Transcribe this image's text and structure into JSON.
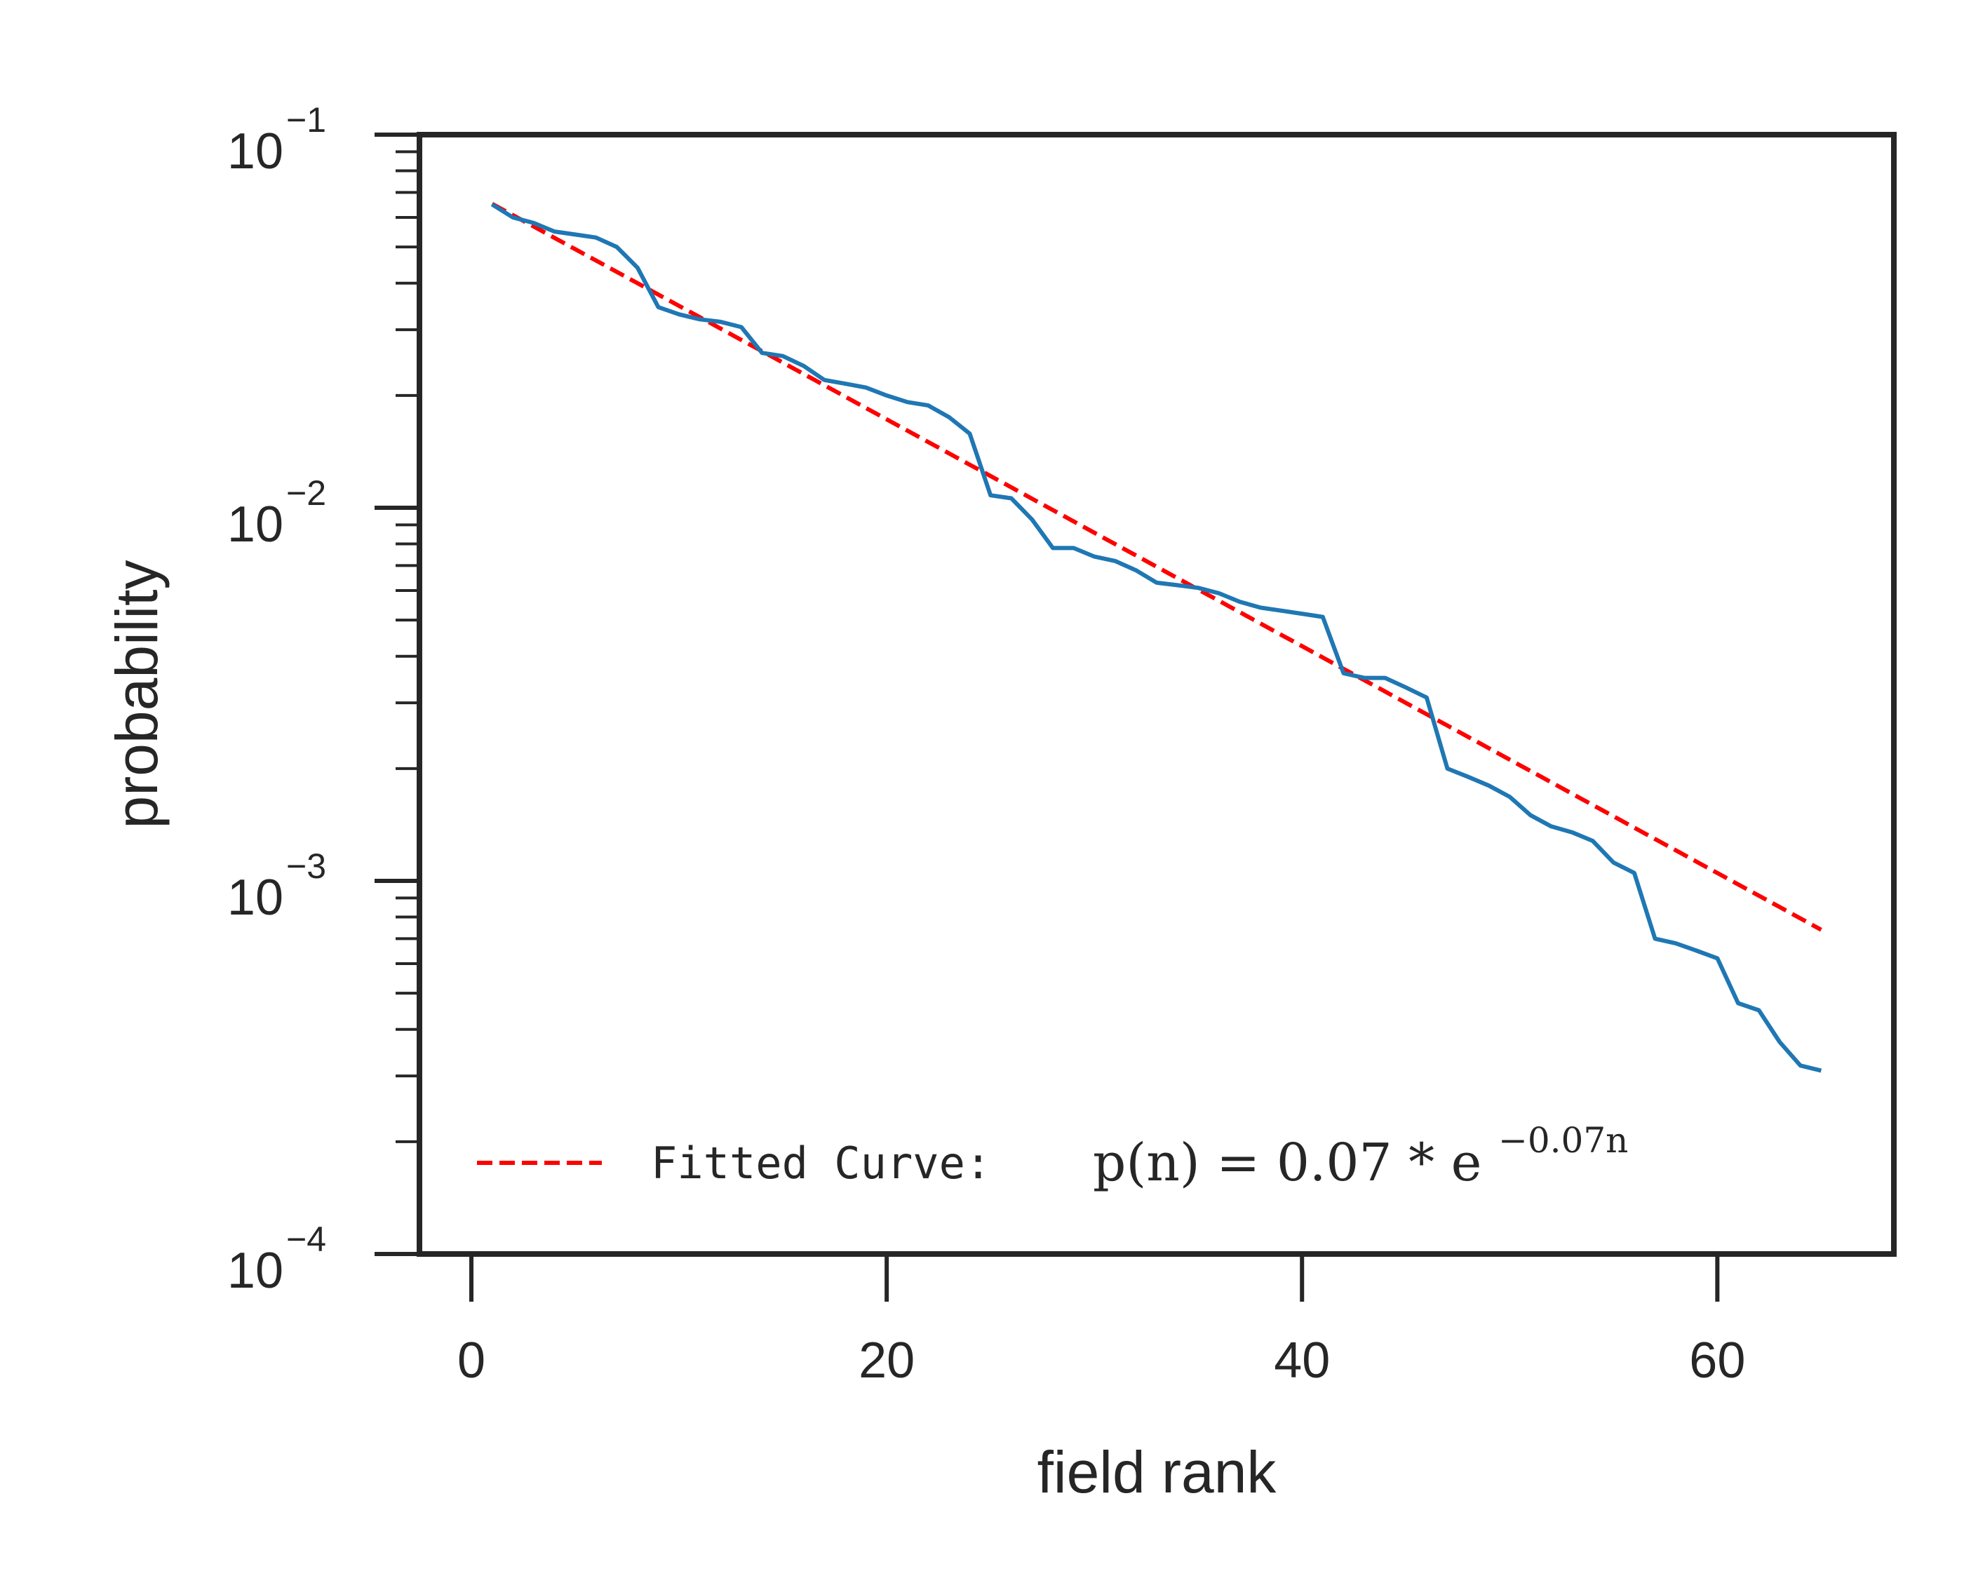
{
  "chart_data": {
    "type": "line",
    "xlabel": "field rank",
    "ylabel": "probability",
    "xlim": [
      -2.5,
      68.5
    ],
    "ylim": [
      0.0001,
      0.1
    ],
    "yscale": "log",
    "grid": false,
    "legend_position": "lower-left",
    "x_ticks": [
      0,
      20,
      40,
      60
    ],
    "y_ticks": [
      {
        "value": 0.0001,
        "base": "10",
        "exp": "−4"
      },
      {
        "value": 0.001,
        "base": "10",
        "exp": "−3"
      },
      {
        "value": 0.01,
        "base": "10",
        "exp": "−2"
      },
      {
        "value": 0.1,
        "base": "10",
        "exp": "−1"
      }
    ],
    "series": [
      {
        "color": "#1f77b4",
        "style": "solid",
        "x": [
          1,
          2,
          3,
          4,
          5,
          6,
          7,
          8,
          9,
          10,
          11,
          12,
          13,
          14,
          15,
          16,
          17,
          18,
          19,
          20,
          21,
          22,
          23,
          24,
          25,
          26,
          27,
          28,
          29,
          30,
          31,
          32,
          33,
          34,
          35,
          36,
          37,
          38,
          39,
          40,
          41,
          42,
          43,
          44,
          45,
          46,
          47,
          48,
          49,
          50,
          51,
          52,
          53,
          54,
          55,
          56,
          57,
          58,
          59,
          60,
          61,
          62,
          63,
          64,
          65
        ],
        "y": [
          0.065,
          0.06,
          0.058,
          0.055,
          0.054,
          0.053,
          0.05,
          0.044,
          0.0345,
          0.033,
          0.032,
          0.0315,
          0.0305,
          0.026,
          0.0255,
          0.024,
          0.022,
          0.0215,
          0.021,
          0.02,
          0.0192,
          0.0188,
          0.0175,
          0.0158,
          0.0108,
          0.0106,
          0.0093,
          0.0078,
          0.0078,
          0.0074,
          0.0072,
          0.0068,
          0.0063,
          0.0062,
          0.0061,
          0.0059,
          0.0056,
          0.0054,
          0.0053,
          0.0052,
          0.0051,
          0.0036,
          0.0035,
          0.0035,
          0.0033,
          0.0031,
          0.002,
          0.0019,
          0.0018,
          0.00168,
          0.0015,
          0.0014,
          0.00135,
          0.00128,
          0.00112,
          0.00105,
          0.0007,
          0.00068,
          0.00065,
          0.00062,
          0.00047,
          0.00045,
          0.00037,
          0.00032,
          0.00031
        ]
      },
      {
        "name": "Fitted Curve:",
        "name_math": "p(n) = 0.07 * e",
        "name_math_exp": "−0.07n",
        "color": "#ff0000",
        "style": "dashed",
        "function": "0.07*exp(-0.07*n)",
        "x_range": [
          1,
          65
        ]
      }
    ]
  }
}
